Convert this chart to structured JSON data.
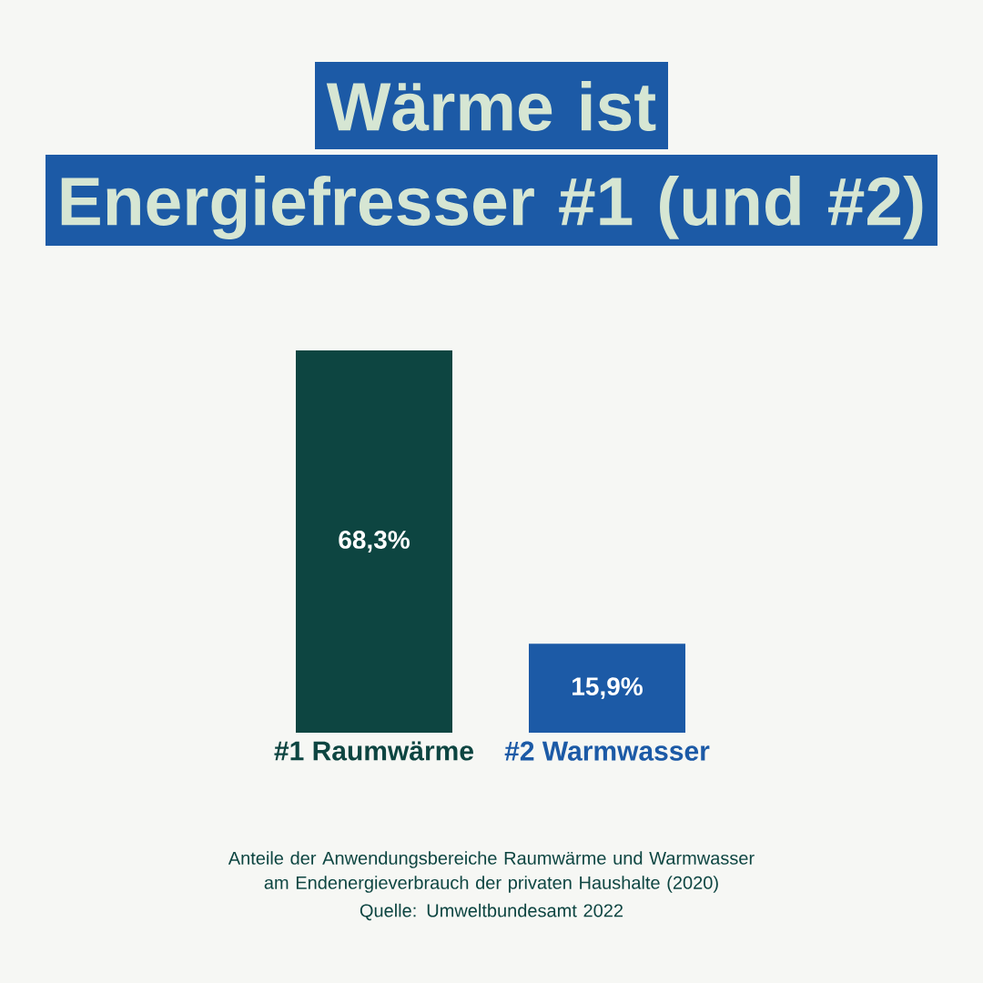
{
  "chart_data": {
    "type": "bar",
    "title": "Wärme ist Energiefresser #1 (und #2)",
    "categories": [
      "#1 Raumwärme",
      "#2 Warmwasser"
    ],
    "values": [
      68.3,
      15.9
    ],
    "colors": [
      "#0d4541",
      "#1c5aa6"
    ],
    "value_labels": [
      "68,3%",
      "15,9%"
    ],
    "annotations": [
      "Anteile der Anwendungsbereiche Raumwärme und Warmwasser am Endenergieverbrauch der privaten Haushalte (2020)",
      "Quelle: Umweltbundesamt 2022"
    ]
  }
}
